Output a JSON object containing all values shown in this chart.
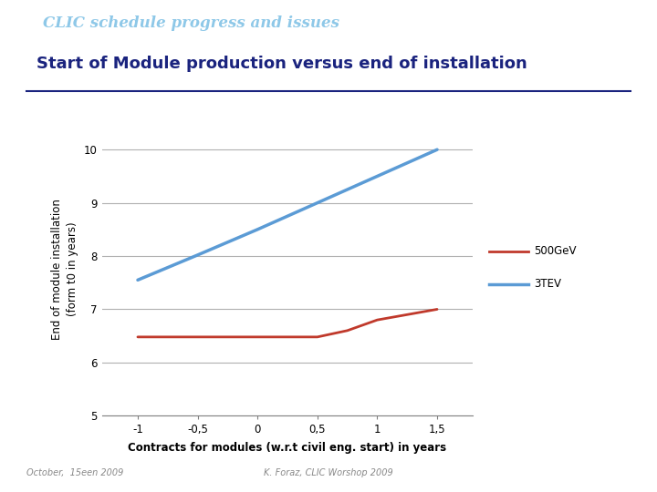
{
  "title": "Start of Module production versus end of installation",
  "header": "CLIC schedule progress and issues",
  "xlabel": "Contracts for modules (w.r.t civil eng. start) in years",
  "ylabel": "End of module installation\n(form t0 in years)",
  "xlim": [
    -1.3,
    1.8
  ],
  "ylim": [
    5,
    10.5
  ],
  "xticks": [
    -1,
    -0.5,
    0,
    0.5,
    1,
    1.5
  ],
  "yticks": [
    5,
    6,
    7,
    8,
    9,
    10
  ],
  "xtick_labels": [
    "-1",
    "-0,5",
    "0",
    "0,5",
    "1",
    "1,5"
  ],
  "ytick_labels": [
    "5",
    "6",
    "7",
    "8",
    "9",
    "10"
  ],
  "series_500GeV": {
    "x": [
      -1,
      -0.5,
      0,
      0.5,
      0.75,
      1.0,
      1.5
    ],
    "y": [
      6.48,
      6.48,
      6.48,
      6.48,
      6.6,
      6.8,
      7.0
    ],
    "color": "#c0392b",
    "label": "500GeV",
    "linewidth": 2.0
  },
  "series_3TEV": {
    "x": [
      -1,
      -0.5,
      0,
      0.5,
      1.0,
      1.5
    ],
    "y": [
      7.55,
      8.02,
      8.5,
      9.0,
      9.5,
      10.0
    ],
    "color": "#5b9bd5",
    "label": "3TEV",
    "linewidth": 2.5
  },
  "footer_left": "October,  15een 2009",
  "footer_right": "K. Foraz, CLIC Worshop 2009",
  "header_bg": "#1a237e",
  "header_text_color": "#8ec8e8",
  "title_color": "#1a237e",
  "underline_color": "#1a237e",
  "bg_color": "#ffffff",
  "plot_bg": "#ffffff",
  "grid_color": "#b0b0b0",
  "axis_color": "#808080",
  "tick_label_color": "#000000",
  "footer_color": "#888888"
}
